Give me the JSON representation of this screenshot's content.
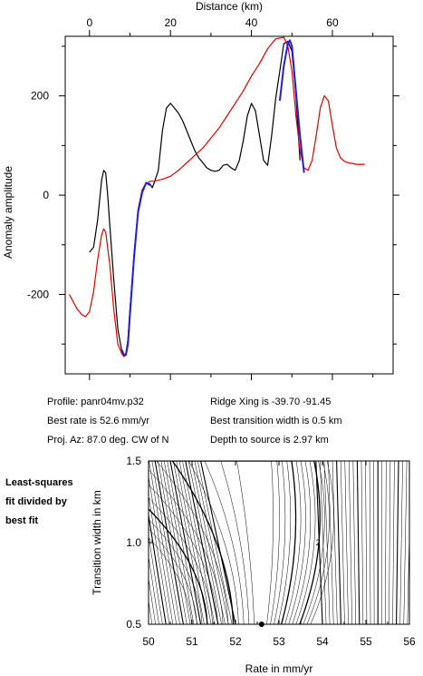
{
  "chart_data": [
    {
      "type": "line",
      "title": "",
      "xlabel": "Distance (km)",
      "ylabel": "Anomaly amplitude",
      "xlim": [
        -6,
        75
      ],
      "ylim": [
        -360,
        320
      ],
      "xticks": [
        "0",
        "20",
        "40",
        "60"
      ],
      "xtick_values": [
        0,
        20,
        40,
        60
      ],
      "yticks": [
        "200",
        "0",
        "-200"
      ],
      "ytick_values": [
        200,
        0,
        -200
      ],
      "grid": false,
      "series": [
        {
          "name": "",
          "color": "#000000",
          "x": [
            0,
            1,
            2,
            3,
            3.5,
            4,
            4.5,
            5,
            6,
            7,
            8,
            8.5,
            9,
            9.5,
            10,
            11,
            12,
            13,
            14,
            15,
            15.5,
            16,
            17,
            18,
            19,
            20,
            21,
            22,
            23,
            24,
            25,
            26,
            27,
            28,
            29,
            30,
            31,
            32,
            33,
            34,
            35,
            36,
            37,
            38,
            39,
            40,
            41,
            42,
            43,
            44,
            45,
            46,
            47,
            48,
            49,
            50,
            51,
            52
          ],
          "y": [
            -115,
            -105,
            -50,
            30,
            50,
            45,
            0,
            -60,
            -170,
            -270,
            -315,
            -325,
            -322,
            -290,
            -230,
            -120,
            -30,
            10,
            25,
            22,
            15,
            25,
            50,
            130,
            175,
            185,
            175,
            165,
            150,
            130,
            110,
            90,
            75,
            65,
            55,
            50,
            48,
            50,
            60,
            62,
            55,
            50,
            70,
            110,
            160,
            185,
            170,
            120,
            70,
            60,
            120,
            195,
            250,
            305,
            310,
            290,
            200,
            70
          ]
        },
        {
          "name": "",
          "color": "#e00000",
          "x": [
            -5,
            -4,
            -3,
            -2,
            -1,
            0,
            1,
            2,
            3,
            3.5,
            4,
            5,
            6,
            7,
            8,
            8.5,
            9,
            9.5,
            10,
            11,
            12,
            13,
            14,
            15,
            16,
            18,
            20,
            22,
            24,
            26,
            28,
            30,
            32,
            34,
            36,
            38,
            40,
            42,
            44,
            46,
            48,
            49,
            50,
            51,
            52,
            53,
            54,
            55,
            56,
            57,
            58,
            59,
            60,
            61,
            62,
            63,
            64,
            66,
            68
          ],
          "y": [
            -200,
            -215,
            -230,
            -240,
            -245,
            -235,
            -195,
            -130,
            -80,
            -68,
            -75,
            -140,
            -230,
            -300,
            -320,
            -325,
            -318,
            -290,
            -230,
            -120,
            -30,
            10,
            23,
            28,
            28,
            32,
            38,
            50,
            65,
            80,
            95,
            115,
            135,
            160,
            185,
            210,
            240,
            265,
            295,
            315,
            318,
            300,
            250,
            160,
            90,
            55,
            50,
            70,
            120,
            175,
            200,
            190,
            140,
            95,
            75,
            68,
            65,
            62,
            62
          ]
        },
        {
          "name": "",
          "color": "#1f1fe6",
          "x": [
            8,
            8.5,
            9,
            9.5,
            10,
            11,
            12,
            13,
            14,
            15,
            47,
            48,
            49,
            49.5,
            50,
            51,
            52,
            53
          ],
          "y": [
            -312,
            -322,
            -322,
            -300,
            -240,
            -125,
            -35,
            5,
            25,
            20,
            190,
            260,
            305,
            312,
            300,
            210,
            120,
            45
          ]
        }
      ]
    },
    {
      "type": "contour",
      "title": "",
      "xlabel": "Rate in mm/yr",
      "ylabel": "Transition width in km",
      "xlim": [
        50,
        56
      ],
      "ylim": [
        0.5,
        1.5
      ],
      "xticks": [
        "50",
        "51",
        "52",
        "53",
        "54",
        "55",
        "56"
      ],
      "xtick_values": [
        50,
        51,
        52,
        53,
        54,
        55,
        56
      ],
      "yticks": [
        "1.5",
        "1.0",
        "0.5"
      ],
      "ytick_values": [
        1.5,
        1.0,
        0.5
      ],
      "minimum": {
        "rate": 52.6,
        "width": 0.5
      },
      "contour_label": "2",
      "contour_label_position": {
        "rate": 53.9,
        "width": 1.0
      },
      "side_label": [
        "Least-squares",
        "fit divided by",
        "best fit"
      ]
    }
  ],
  "info": {
    "profile": "Profile: panr04mv.p32",
    "best_rate": "Best rate is 52.6 mm/yr",
    "proj_az": "Proj. Az: 87.0 deg. CW of N",
    "ridge_xing": "Ridge Xing is -39.70 -91.45",
    "best_width": "Best transition width is 0.5 km",
    "depth": "Depth to source is   2.97 km"
  }
}
